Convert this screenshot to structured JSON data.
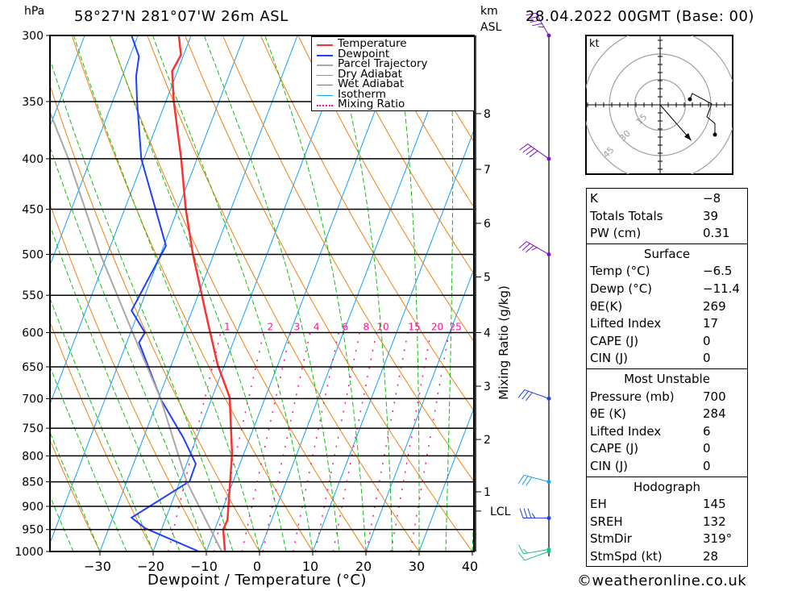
{
  "header": {
    "pressure_unit": "hPa",
    "location": "58°27'N  281°07'W  26m  ASL",
    "height_unit": "km",
    "height_ref": "ASL",
    "datetime": "28.04.2022  00GMT  (Base: 00)"
  },
  "axes": {
    "xlabel": "Dewpoint / Temperature (°C)",
    "mixing_ratio_label": "Mixing Ratio (g/kg)",
    "km_ticks": [
      {
        "label": "8",
        "km": 8,
        "p": 360
      },
      {
        "label": "7",
        "km": 7,
        "p": 410
      },
      {
        "label": "6",
        "km": 6,
        "p": 465
      },
      {
        "label": "5",
        "km": 5,
        "p": 527
      },
      {
        "label": "4",
        "km": 4,
        "p": 600
      },
      {
        "label": "3",
        "km": 3,
        "p": 680
      },
      {
        "label": "2",
        "km": 2,
        "p": 770
      },
      {
        "label": "1",
        "km": 1,
        "p": 870
      },
      {
        "label": "LCL",
        "km": 0.75,
        "p": 910
      }
    ]
  },
  "legend": [
    {
      "label": "Temperature",
      "color": "#ff3030",
      "style": "solid"
    },
    {
      "label": "Dewpoint",
      "color": "#2040ff",
      "style": "solid"
    },
    {
      "label": "Parcel Trajectory",
      "color": "#a8a8a8",
      "style": "solid"
    },
    {
      "label": "Dry Adiabat",
      "color": "#f08010",
      "style": "solid"
    },
    {
      "label": "Wet Adiabat",
      "color": "#10c010",
      "style": "solid"
    },
    {
      "label": "Isotherm",
      "color": "#10a0ff",
      "style": "solid"
    },
    {
      "label": "Mixing Ratio",
      "color": "#ff1090",
      "style": "dotted"
    }
  ],
  "stats": {
    "indices": [
      {
        "key": "K",
        "value": "−8"
      },
      {
        "key": "Totals Totals",
        "value": "39"
      },
      {
        "key": "PW (cm)",
        "value": "0.31"
      }
    ],
    "surface": {
      "title": "Surface",
      "rows": [
        {
          "key": "Temp (°C)",
          "value": "−6.5"
        },
        {
          "key": "Dewp (°C)",
          "value": "−11.4"
        },
        {
          "key": "θE(K)",
          "value": "269"
        },
        {
          "key": "Lifted Index",
          "value": "17"
        },
        {
          "key": "CAPE (J)",
          "value": "0"
        },
        {
          "key": "CIN (J)",
          "value": "0"
        }
      ]
    },
    "most_unstable": {
      "title": "Most Unstable",
      "rows": [
        {
          "key": "Pressure (mb)",
          "value": "700"
        },
        {
          "key": "θE (K)",
          "value": "284"
        },
        {
          "key": "Lifted Index",
          "value": "6"
        },
        {
          "key": "CAPE (J)",
          "value": "0"
        },
        {
          "key": "CIN (J)",
          "value": "0"
        }
      ]
    },
    "hodograph": {
      "title": "Hodograph",
      "rows": [
        {
          "key": "EH",
          "value": "145"
        },
        {
          "key": "SREH",
          "value": "132"
        },
        {
          "key": "StmDir",
          "value": "319°"
        },
        {
          "key": "StmSpd (kt)",
          "value": "28"
        }
      ]
    }
  },
  "footer": "©weatheronline.co.uk",
  "chart_data": {
    "type": "skew-t",
    "title": "58°27'N 281°07'W 26m ASL — 28.04.2022 00GMT (Base: 00)",
    "xlabel": "Dewpoint / Temperature (°C)",
    "ylabel": "hPa",
    "xlim": [
      -40,
      40
    ],
    "ylim": [
      1000,
      300
    ],
    "x_ticks": [
      -30,
      -20,
      -10,
      0,
      10,
      20,
      30,
      40
    ],
    "pressure_levels": [
      300,
      350,
      400,
      450,
      500,
      550,
      600,
      650,
      700,
      750,
      800,
      850,
      900,
      950,
      1000
    ],
    "isotherms": [
      -110,
      -100,
      -90,
      -80,
      -70,
      -60,
      -50,
      -40,
      -30,
      -20,
      -10,
      0,
      10,
      20,
      30,
      40
    ],
    "dry_adiabats_C": [
      -30,
      -20,
      -10,
      0,
      10,
      20,
      30,
      40,
      50,
      60,
      70,
      80,
      90,
      100,
      110,
      120,
      130,
      140,
      150
    ],
    "wet_adiabats_C": [
      -40,
      -35,
      -30,
      -25,
      -20,
      -15,
      -10,
      -5,
      0,
      5,
      10,
      15,
      20,
      25,
      30,
      35,
      40
    ],
    "mixing_ratios": [
      1,
      2,
      3,
      4,
      6,
      8,
      10,
      15,
      20,
      25
    ],
    "series": [
      {
        "name": "Temperature",
        "color": "#ff3030",
        "points": [
          [
            1000,
            -6.5
          ],
          [
            950,
            -8.4
          ],
          [
            929,
            -8.3
          ],
          [
            865,
            -10.1
          ],
          [
            796,
            -12.2
          ],
          [
            698,
            -16.7
          ],
          [
            647,
            -21.3
          ],
          [
            586,
            -26.2
          ],
          [
            500,
            -33.9
          ],
          [
            450,
            -38.5
          ],
          [
            400,
            -43.0
          ],
          [
            350,
            -48.5
          ],
          [
            326,
            -51.0
          ],
          [
            314,
            -50.5
          ],
          [
            300,
            -52.3
          ]
        ]
      },
      {
        "name": "Dewpoint",
        "color": "#2040ff",
        "points": [
          [
            1000,
            -11.4
          ],
          [
            947,
            -23.2
          ],
          [
            924,
            -26.5
          ],
          [
            849,
            -18.2
          ],
          [
            815,
            -18.3
          ],
          [
            767,
            -22.5
          ],
          [
            703,
            -29.3
          ],
          [
            681,
            -31.3
          ],
          [
            614,
            -37.7
          ],
          [
            600,
            -37.3
          ],
          [
            570,
            -41.4
          ],
          [
            490,
            -39.6
          ],
          [
            400,
            -50.5
          ],
          [
            350,
            -55.4
          ],
          [
            330,
            -57.4
          ],
          [
            315,
            -58.3
          ],
          [
            300,
            -61.2
          ]
        ]
      },
      {
        "name": "Parcel Trajectory",
        "color": "#a8a8a8",
        "points": [
          [
            1000,
            -7.1
          ],
          [
            850,
            -18.7
          ],
          [
            700,
            -29.6
          ],
          [
            600,
            -39.6
          ],
          [
            500,
            -51.3
          ],
          [
            400,
            -64.2
          ],
          [
            359,
            -71.0
          ]
        ]
      }
    ],
    "wind_barbs": [
      {
        "p": 300,
        "dir": 330,
        "kt": 45,
        "color": "#8010d0"
      },
      {
        "p": 400,
        "dir": 305,
        "kt": 40,
        "color": "#8010d0"
      },
      {
        "p": 500,
        "dir": 300,
        "kt": 35,
        "color": "#8010d0"
      },
      {
        "p": 700,
        "dir": 290,
        "kt": 30,
        "color": "#2040e0"
      },
      {
        "p": 850,
        "dir": 285,
        "kt": 30,
        "color": "#10a0f0"
      },
      {
        "p": 925,
        "dir": 270,
        "kt": 35,
        "color": "#2040e0"
      },
      {
        "p": 995,
        "dir": 260,
        "kt": 15,
        "color": "#20c080"
      },
      {
        "p": 1000,
        "dir": 250,
        "kt": 10,
        "color": "#20c080"
      }
    ],
    "hodograph": {
      "unit_label": "kt",
      "rings_kt": [
        15,
        30,
        45
      ],
      "points_uv_kt": [
        [
          17.6,
          3.3
        ],
        [
          19.0,
          6.7
        ],
        [
          30.5,
          0.5
        ],
        [
          27.6,
          -7.1
        ],
        [
          32.4,
          -11.0
        ],
        [
          32.4,
          -17.6
        ]
      ],
      "storm_motion_uv_kt": [
        18.4,
        -21.1
      ]
    }
  }
}
